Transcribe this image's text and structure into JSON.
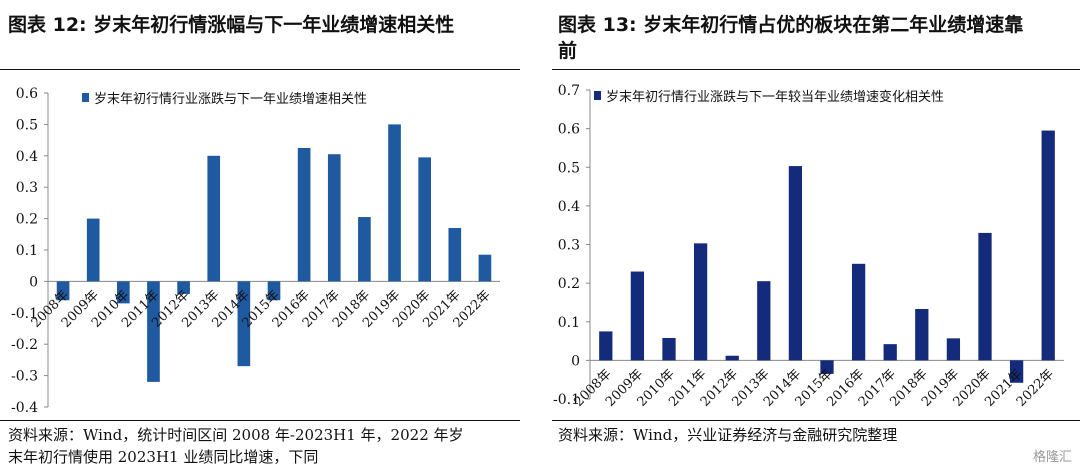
{
  "charts": [
    {
      "title": "图表 12: 岁末年初行情涨幅与下一年业绩增速相关性",
      "source_line1": "资料来源：Wind，统计时间区间 2008 年-2023H1 年，2022 年岁",
      "source_line2": "末年初行情使用 2023H1 业绩同比增速，下同"
    },
    {
      "title": "图表 13: 岁末年初行情占优的板块在第二年业绩增速靠",
      "title_line2": "前",
      "source_line1": "资料来源：Wind，兴业证券经济与金融研究院整理"
    }
  ],
  "watermark": "格隆汇",
  "chart_data": [
    {
      "type": "bar",
      "categories": [
        "2008年",
        "2009年",
        "2010年",
        "2011年",
        "2012年",
        "2013年",
        "2014年",
        "2015年",
        "2016年",
        "2017年",
        "2018年",
        "2019年",
        "2020年",
        "2021年",
        "2022年"
      ],
      "series": [
        {
          "name": "岁末年初行情行业涨跌与下一年业绩增速相关性",
          "values": [
            -0.06,
            0.2,
            -0.07,
            -0.32,
            -0.04,
            0.4,
            -0.27,
            -0.06,
            0.425,
            0.405,
            0.205,
            0.5,
            0.395,
            0.17,
            0.085
          ]
        }
      ],
      "yticks": [
        "0.6",
        "0.5",
        "0.4",
        "0.3",
        "0.2",
        "0.1",
        "0",
        "-0.1",
        "-0.2",
        "-0.3",
        "-0.4"
      ],
      "ylim": [
        -0.4,
        0.6
      ],
      "color": "#1f5aa0",
      "legend": "top-left"
    },
    {
      "type": "bar",
      "categories": [
        "2008年",
        "2009年",
        "2010年",
        "2011年",
        "2012年",
        "2013年",
        "2014年",
        "2015年",
        "2016年",
        "2017年",
        "2018年",
        "2019年",
        "2020年",
        "2021年",
        "2022年"
      ],
      "series": [
        {
          "name": "岁末年初行情行业涨跌与下一年较当年业绩增速变化相关性",
          "values": [
            0.075,
            0.23,
            0.058,
            0.303,
            0.012,
            0.205,
            0.503,
            -0.035,
            0.25,
            0.042,
            0.133,
            0.057,
            0.33,
            -0.058,
            0.595
          ]
        }
      ],
      "yticks": [
        "0.7",
        "0.6",
        "0.5",
        "0.4",
        "0.3",
        "0.2",
        "0.1",
        "0",
        "-0.1"
      ],
      "ylim": [
        -0.1,
        0.7
      ],
      "color": "#142a7a",
      "legend": "top-left"
    }
  ]
}
